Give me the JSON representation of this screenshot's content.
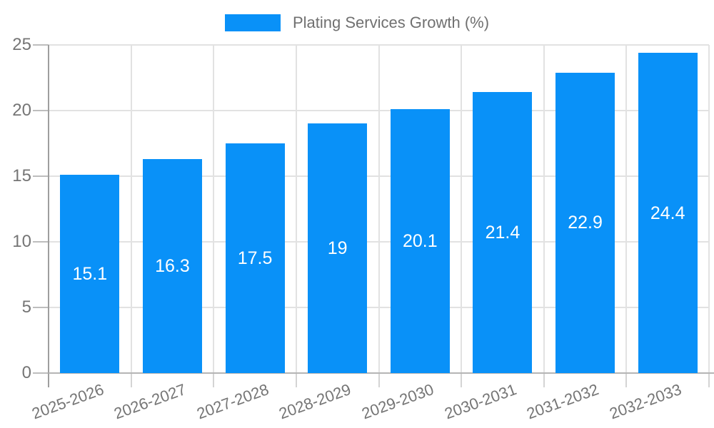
{
  "legend": {
    "label": "Plating Services Growth (%)"
  },
  "colors": {
    "bar": "#0991f8",
    "bar_label": "#ffffff",
    "axis_text": "#757575",
    "legend_text": "#707070",
    "grid": "#e2e2e2",
    "axis_line": "#9e9e9e",
    "baseline": "#b5b5b5",
    "tick": "#bdbdbd",
    "xtick": "#d4d4d4"
  },
  "chart_data": {
    "type": "bar",
    "title": "Plating Services Growth (%)",
    "categories": [
      "2025-2026",
      "2026-2027",
      "2027-2028",
      "2028-2029",
      "2029-2030",
      "2030-2031",
      "2031-2032",
      "2032-2033"
    ],
    "values": [
      15.1,
      16.3,
      17.5,
      19,
      20.1,
      21.4,
      22.9,
      24.4
    ],
    "bar_labels": [
      "15.1",
      "16.3",
      "17.5",
      "19",
      "20.1",
      "21.4",
      "22.9",
      "24.4"
    ],
    "xlabel": "",
    "ylabel": "",
    "ylim": [
      0,
      25
    ],
    "yticks": [
      0,
      5,
      10,
      15,
      20,
      25
    ],
    "grid": true,
    "legend_position": "top-center",
    "x_tick_rotation_deg": -20
  }
}
